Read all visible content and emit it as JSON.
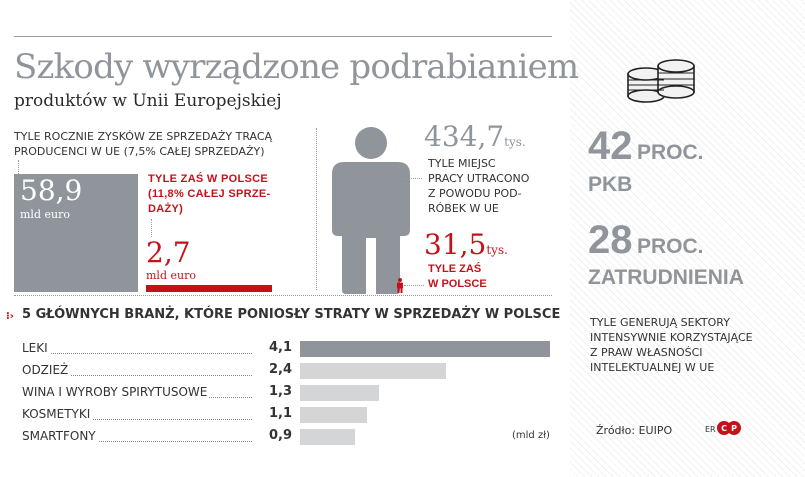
{
  "header": {
    "title": "Szkody wyrządzone podrabianiem",
    "subtitle": "produktów w Unii Europejskiej"
  },
  "profits": {
    "caption_line1": "TYLE ROCZNIE ZYSKÓW ZE SPRZEDAŻY TRACĄ",
    "caption_line2": "PRODUCENCI W UE (7,5% CAŁEJ SPRZEDAŻY)",
    "eu_value": "58,9",
    "eu_unit": "mld euro",
    "pl_note_line1": "TYLE ZAŚ W POLSCE",
    "pl_note_line2": "(11,8% CAŁEJ SPRZE-",
    "pl_note_line3": "DAŻY)",
    "pl_value": "2,7",
    "pl_unit": "mld euro"
  },
  "jobs": {
    "eu_value": "434,7",
    "eu_unit": "tys.",
    "eu_desc_line1": "TYLE MIEJSC",
    "eu_desc_line2": "PRACY UTRACONO",
    "eu_desc_line3": "Z POWODU POD-",
    "eu_desc_line4": "RÓBEK W UE",
    "pl_value": "31,5",
    "pl_unit": "tys.",
    "pl_desc_line1": "TYLE ZAŚ",
    "pl_desc_line2": "W POLSCE"
  },
  "right_panel": {
    "stat1_number": "42",
    "stat1_word": "PROC.",
    "stat1_label": "PKB",
    "stat2_number": "28",
    "stat2_word": "PROC.",
    "stat2_label": "ZATRUDNIENIA",
    "desc_line1": "TYLE GENERUJĄ SEKTORY",
    "desc_line2": "INTENSYWNIE KORZYSTAJĄCE",
    "desc_line3": "Z PRAW WŁASNOŚCI",
    "desc_line4": "INTELEKTUALNEJ W UE",
    "source": "Źródło: EUIPO",
    "credit": "ER"
  },
  "colors": {
    "grey": "#8f959a",
    "red": "#c4121a",
    "light_bar": "#d3d5d7",
    "dark_bar": "#8f959a"
  },
  "chart_data": {
    "type": "bar",
    "title": "5 GŁÓWNYCH BRANŻ, KTÓRE PONIOSŁY STRATY W SPRZEDAŻY W POLSCE",
    "categories": [
      "LEKI",
      "ODZIEŻ",
      "WINA I WYROBY SPIRYTUSOWE",
      "KOSMETYKI",
      "SMARTFONY"
    ],
    "value_labels": [
      "4,1",
      "2,4",
      "1,3",
      "1,1",
      "0,9"
    ],
    "values": [
      4.1,
      2.4,
      1.3,
      1.1,
      0.9
    ],
    "unit": "(mld zł)",
    "xlim": [
      0,
      4.1
    ]
  }
}
